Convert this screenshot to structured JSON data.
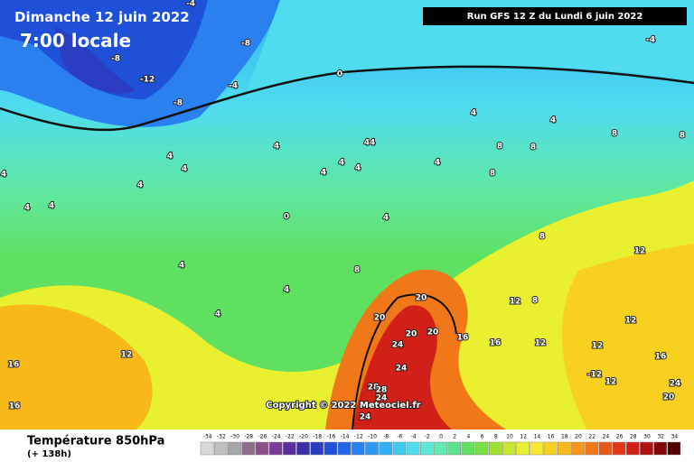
{
  "header": {
    "date": "Dimanche 12 juin 2022",
    "time": "7:00 locale",
    "run": "Run GFS 12 Z du Lundi 6 juin 2022",
    "copyright": "Copyright © 2022 Meteociel.fr"
  },
  "legend": {
    "title": "Température 850hPa",
    "lead": "(+ 138h)",
    "ticks": [
      -34,
      -32,
      -30,
      -28,
      -26,
      -24,
      -22,
      -20,
      -18,
      -16,
      -14,
      -12,
      -10,
      -8,
      -6,
      -4,
      -2,
      0,
      2,
      4,
      6,
      8,
      10,
      12,
      14,
      16,
      18,
      20,
      22,
      24,
      26,
      28,
      30,
      32,
      34
    ],
    "colors": [
      "#d9d9d9",
      "#bfbfbf",
      "#a6a6a6",
      "#8c6d8c",
      "#8b4f8b",
      "#7a3c99",
      "#5a2d9a",
      "#3b2fa8",
      "#2a3cc0",
      "#1e50d8",
      "#1f66e8",
      "#2b80f0",
      "#2f98f4",
      "#33b0f5",
      "#3fc8f0",
      "#4fdcef",
      "#5fe8d8",
      "#60e8b0",
      "#5fe090",
      "#60e060",
      "#7ae040",
      "#a0e030",
      "#c8e830",
      "#e8f030",
      "#f8e830",
      "#f8d020",
      "#f8b818",
      "#f89818",
      "#f07818",
      "#e85818",
      "#e03818",
      "#d02018",
      "#b01010",
      "#800808",
      "#500000"
    ]
  },
  "map": {
    "labels": [
      "-8",
      "-8",
      "-12",
      "-4",
      "-8",
      "-4",
      "-4",
      "0",
      "4",
      "4",
      "8",
      "8",
      "8",
      "8",
      "4",
      "4",
      "4",
      "4",
      "4",
      "4",
      "44",
      "4",
      "4",
      "8",
      "4",
      "4",
      "4",
      "0",
      "4",
      "8",
      "4",
      "4",
      "4",
      "8",
      "12",
      "20",
      "20",
      "20",
      "20",
      "16",
      "16",
      "24",
      "24",
      "12",
      "8",
      "12",
      "12",
      "12",
      "16",
      "-12",
      "12",
      "12",
      "16",
      "16",
      "28",
      "28",
      "24",
      "24",
      "20",
      "24"
    ]
  }
}
